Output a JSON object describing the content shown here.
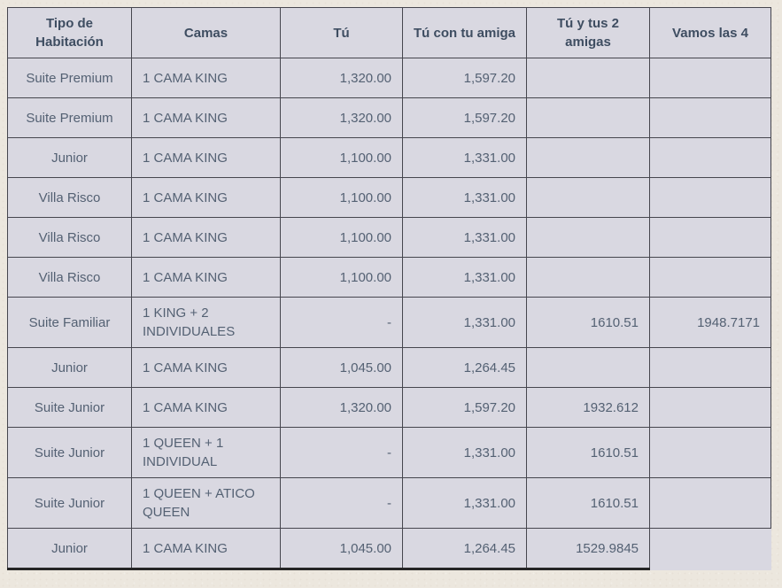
{
  "colors": {
    "page_background": "#ece7de",
    "cell_background": "#d9d8e1",
    "inner_border": "#46464e",
    "outer_border": "#262626",
    "header_text": "#3e4d61",
    "body_text": "#546173"
  },
  "chart_data": {
    "type": "table",
    "title": "",
    "columns": [
      {
        "key": "tipo-de-habitacion",
        "label": "Tipo de Habitación",
        "align": "center"
      },
      {
        "key": "camas",
        "label": "Camas",
        "align": "left"
      },
      {
        "key": "tu",
        "label": "Tú",
        "align": "right"
      },
      {
        "key": "tu-con-tu-amiga",
        "label": "Tú con tu amiga",
        "align": "right"
      },
      {
        "key": "tu-y-tus-2-amigas",
        "label": "Tú y tus 2 amigas",
        "align": "right"
      },
      {
        "key": "vamos-las-4",
        "label": "Vamos las 4",
        "align": "right"
      }
    ],
    "rows": [
      [
        "Suite Premium",
        "1 CAMA KING",
        "1,320.00",
        "1,597.20",
        "",
        ""
      ],
      [
        "Suite Premium",
        "1 CAMA KING",
        "1,320.00",
        "1,597.20",
        "",
        ""
      ],
      [
        "Junior",
        "1 CAMA KING",
        "1,100.00",
        "1,331.00",
        "",
        ""
      ],
      [
        "Villa Risco",
        "1 CAMA KING",
        "1,100.00",
        "1,331.00",
        "",
        ""
      ],
      [
        "Villa Risco",
        "1 CAMA KING",
        "1,100.00",
        "1,331.00",
        "",
        ""
      ],
      [
        "Villa Risco",
        "1 CAMA KING",
        "1,100.00",
        "1,331.00",
        "",
        ""
      ],
      [
        "Suite Familiar",
        "1 KING + 2 INDIVIDUALES",
        "-",
        "1,331.00",
        "1610.51",
        "1948.7171"
      ],
      [
        "Junior",
        "1 CAMA KING",
        "1,045.00",
        "1,264.45",
        "",
        ""
      ],
      [
        "Suite Junior",
        "1 CAMA KING",
        "1,320.00",
        "1,597.20",
        "1932.612",
        ""
      ],
      [
        "Suite Junior",
        "1 QUEEN + 1 INDIVIDUAL",
        "-",
        "1,331.00",
        "1610.51",
        ""
      ],
      [
        "Suite Junior",
        "1 QUEEN + ATICO QUEEN",
        "-",
        "1,331.00",
        "1610.51",
        ""
      ],
      [
        "Junior",
        "1 CAMA KING",
        "1,045.00",
        "1,264.45",
        "1529.9845",
        ""
      ]
    ],
    "layout_hints": {
      "grid": true,
      "header_row_shaded": false,
      "numeric_columns_right_aligned": true
    }
  }
}
